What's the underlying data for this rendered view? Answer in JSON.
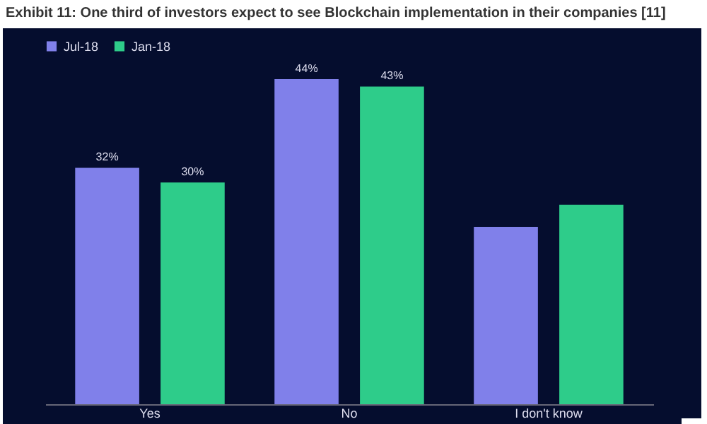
{
  "chart_data": {
    "type": "bar",
    "title": "Exhibit 11: One third of investors expect to see Blockchain implementation in their companies [11]",
    "categories": [
      "Yes",
      "No",
      "I don't know"
    ],
    "series": [
      {
        "name": "Jul-18",
        "color": "#8080ea",
        "values": [
          32,
          44,
          24
        ],
        "value_labels": [
          "32%",
          "44%",
          null
        ]
      },
      {
        "name": "Jan-18",
        "color": "#2ecc8a",
        "values": [
          30,
          43,
          27
        ],
        "value_labels": [
          "30%",
          "43%",
          null
        ]
      }
    ],
    "legend": "top"
  }
}
